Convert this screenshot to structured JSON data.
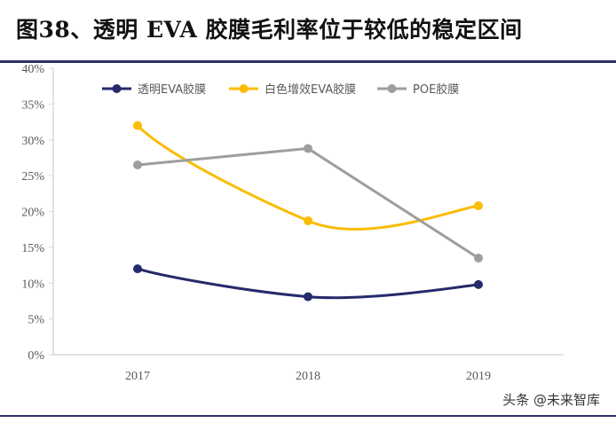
{
  "title": "图38、透明 EVA 胶膜毛利率位于较低的稳定区间",
  "watermark": "头条 @未来智库",
  "chart_data": {
    "type": "line",
    "categories": [
      "2017",
      "2018",
      "2019"
    ],
    "ylim": [
      0,
      40
    ],
    "yticks": [
      "0%",
      "5%",
      "10%",
      "15%",
      "20%",
      "25%",
      "30%",
      "35%",
      "40%"
    ],
    "grid": false,
    "legend": "top",
    "series": [
      {
        "name": "透明EVA胶膜",
        "values": [
          12.0,
          8.1,
          9.8
        ],
        "color": "#252a6b",
        "smooth": true
      },
      {
        "name": "白色增效EVA胶膜",
        "values": [
          32.0,
          18.7,
          20.8
        ],
        "color": "#fbbc05",
        "smooth": true
      },
      {
        "name": "POE胶膜",
        "values": [
          26.5,
          28.8,
          13.5
        ],
        "color": "#9e9e9e",
        "smooth": false
      }
    ]
  }
}
